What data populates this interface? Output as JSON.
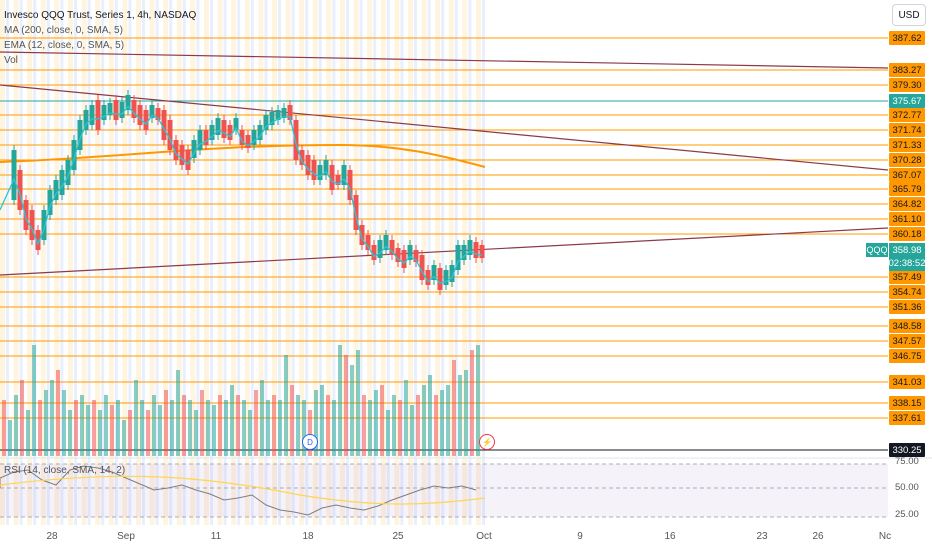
{
  "legend": {
    "title": "Invesco QQQ Trust, Series 1, 4h, NASDAQ",
    "ma": "MA (200, close, 0, SMA, 5)",
    "ema": "EMA (12, close, 0, SMA, 5)",
    "vol": "Vol"
  },
  "currency_button": "USD",
  "symbol": "QQQ",
  "current_price": "358.98",
  "countdown": "02:38:52",
  "levels": [
    "387.62",
    "383.27",
    "379.30",
    "375.67",
    "372.77",
    "371.74",
    "371.33",
    "370.28",
    "367.07",
    "365.79",
    "364.82",
    "361.10",
    "360.18",
    "357.49",
    "354.74",
    "351.36",
    "348.58",
    "347.57",
    "346.75",
    "341.03",
    "338.15",
    "337.61",
    "330.25"
  ],
  "rsi": {
    "label": "RSI (14, close, SMA, 14, 2)",
    "axis": [
      "75.00",
      "50.00",
      "25.00"
    ]
  },
  "time_axis": [
    "28",
    "Sep",
    "11",
    "18",
    "25",
    "Oct",
    "9",
    "16",
    "23",
    "26",
    "Nc"
  ],
  "badges": {
    "dividend": "D"
  },
  "colors": {
    "orange": "#ff9800",
    "teal": "#26a69a",
    "red": "#ef5350",
    "cyan": "#26c6da",
    "maroon": "#8b3a4a"
  }
}
